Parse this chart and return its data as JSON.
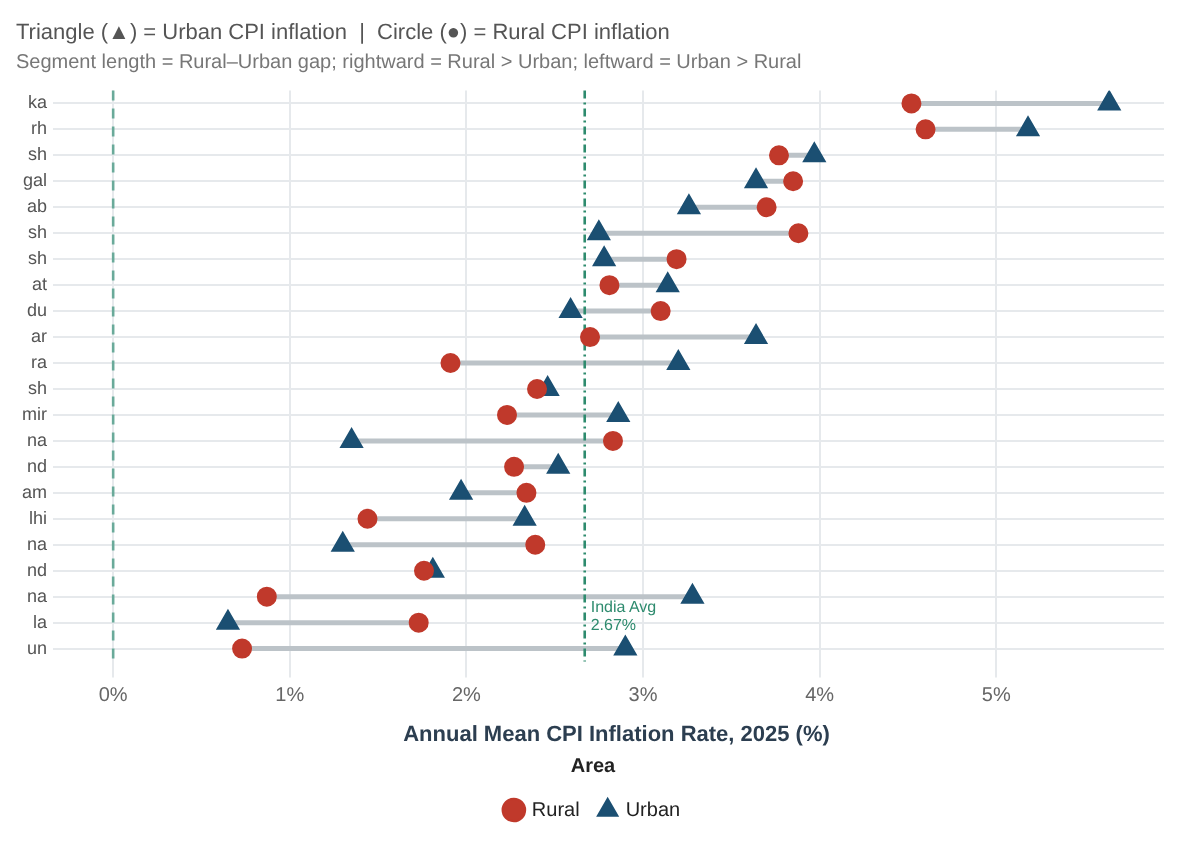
{
  "chart_data": {
    "type": "scatter",
    "title": "Triangle (▲) = Urban CPI inflation  |  Circle (●) = Rural CPI inflation",
    "subtitle": "Segment length = Rural–Urban gap; rightward = Rural > Urban; leftward = Urban > Rural",
    "xlabel": "Annual Mean CPI Inflation Rate, 2025 (%)",
    "legend_title": "Area",
    "orientation": "horizontal",
    "categories": [
      "ka",
      "rh",
      "sh",
      "gal",
      "ab",
      "sh",
      "sh",
      "at",
      "du",
      "ar",
      "ra",
      "sh",
      "mir",
      "na",
      "nd",
      "am",
      "lhi",
      "na",
      "nd",
      "na",
      "la",
      "un"
    ],
    "series": [
      {
        "name": "Rural",
        "color": "#c0392b",
        "marker": "circle",
        "values": [
          4.52,
          4.6,
          3.77,
          3.85,
          3.7,
          3.88,
          3.19,
          2.81,
          3.1,
          2.7,
          1.91,
          2.4,
          2.23,
          2.83,
          2.27,
          2.34,
          1.44,
          2.39,
          1.76,
          0.87,
          1.73,
          0.73
        ]
      },
      {
        "name": "Urban",
        "color": "#1b4f72",
        "marker": "triangle",
        "values": [
          5.64,
          5.18,
          3.97,
          3.64,
          3.26,
          2.75,
          2.78,
          3.14,
          2.59,
          3.64,
          3.2,
          2.46,
          2.86,
          1.35,
          2.52,
          1.97,
          2.33,
          1.3,
          1.81,
          3.28,
          0.65,
          2.9
        ]
      }
    ],
    "xlim": [
      -0.25,
      5.95
    ],
    "xticks": [
      {
        "value": 0,
        "label": "0%"
      },
      {
        "value": 1,
        "label": "1%"
      },
      {
        "value": 2,
        "label": "2%"
      },
      {
        "value": 3,
        "label": "3%"
      },
      {
        "value": 4,
        "label": "4%"
      },
      {
        "value": 5,
        "label": "5%"
      }
    ],
    "ref_lines": [
      {
        "axis": "x",
        "value": 0,
        "color": "#6aaa9a",
        "line_style": "dashed"
      },
      {
        "axis": "x",
        "value": 2.67,
        "label": "India Avg\n2.67%",
        "color": "#2e8b6e",
        "line_style": "dotted"
      }
    ],
    "grid": true,
    "legend": "bottom"
  }
}
